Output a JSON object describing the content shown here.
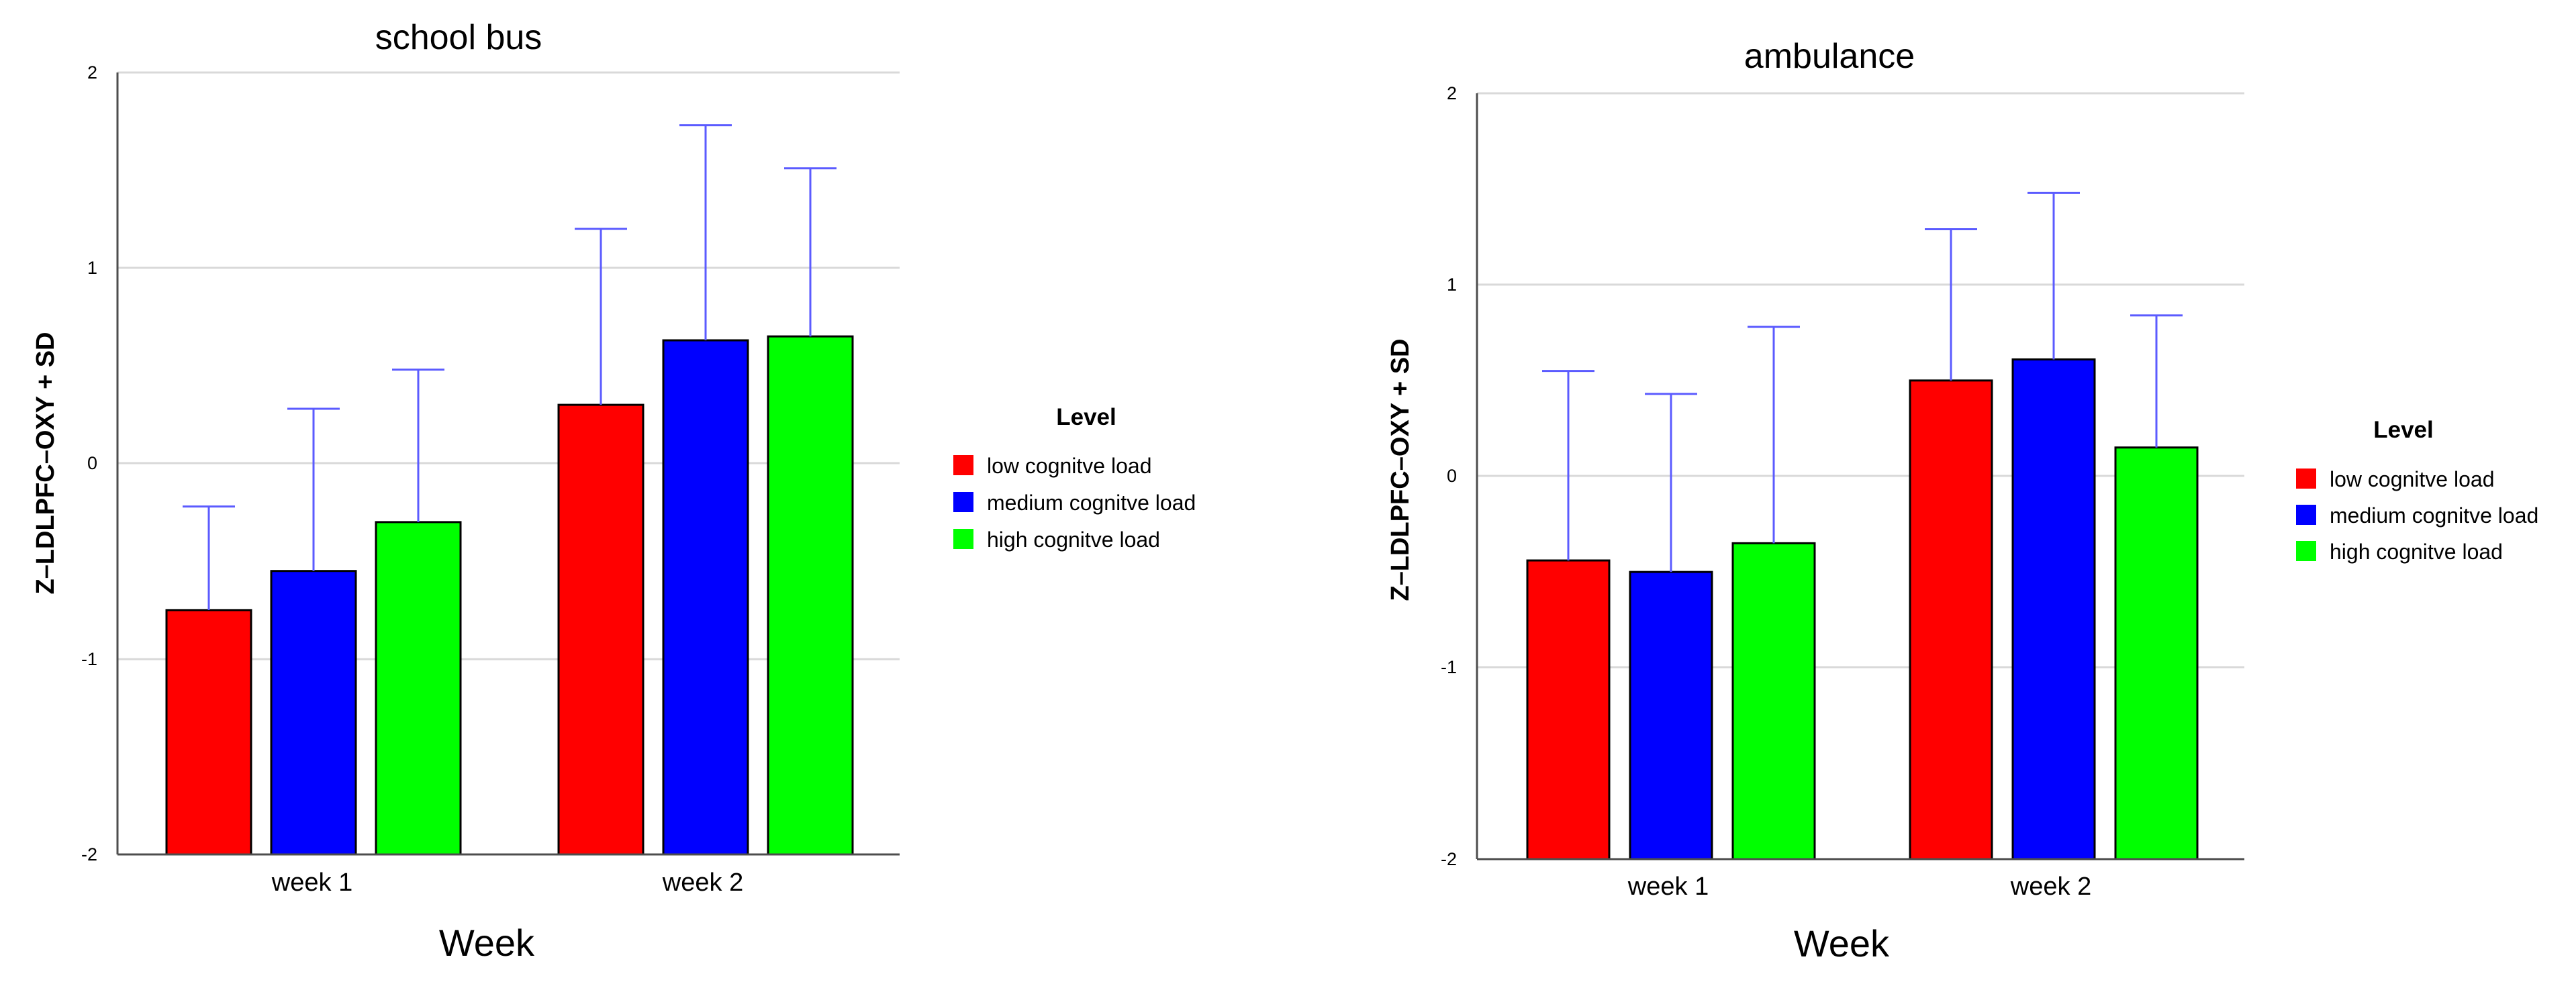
{
  "colors": {
    "low": "#ff0000",
    "medium": "#0000ff",
    "high": "#00ff00",
    "error_bar": "#5b5bff"
  },
  "chart_data": [
    {
      "type": "bar",
      "title": "school bus",
      "xlabel": "Week",
      "ylabel": "Z–LDLPFC–OXY + SD",
      "ylim": [
        -2,
        2
      ],
      "yticks": [
        "2",
        "1",
        "0",
        "-1",
        "-2"
      ],
      "categories": [
        "week 1",
        "week 2"
      ],
      "legend_title": "Level",
      "legend_position": "right",
      "grid": true,
      "series": [
        {
          "name": "low cognitve load",
          "values": [
            -0.75,
            0.3
          ],
          "sd": [
            0.53,
            0.9
          ]
        },
        {
          "name": "medium cognitve load",
          "values": [
            -0.55,
            0.63
          ],
          "sd": [
            0.83,
            1.1
          ]
        },
        {
          "name": "high cognitve load",
          "values": [
            -0.3,
            0.65
          ],
          "sd": [
            0.78,
            0.86
          ]
        }
      ]
    },
    {
      "type": "bar",
      "title": "ambulance",
      "xlabel": "Week",
      "ylabel": "Z–LDLPFC–OXY + SD",
      "ylim": [
        -2,
        2
      ],
      "yticks": [
        "2",
        "1",
        "0",
        "-1",
        "-2"
      ],
      "categories": [
        "week 1",
        "week 2"
      ],
      "legend_title": "Level",
      "legend_position": "right",
      "grid": true,
      "series": [
        {
          "name": "low cognitve load",
          "values": [
            -0.44,
            0.5
          ],
          "sd": [
            0.99,
            0.79
          ]
        },
        {
          "name": "medium cognitve load",
          "values": [
            -0.5,
            0.61
          ],
          "sd": [
            0.93,
            0.87
          ]
        },
        {
          "name": "high cognitve load",
          "values": [
            -0.35,
            0.15
          ],
          "sd": [
            1.13,
            0.69
          ]
        }
      ]
    }
  ]
}
